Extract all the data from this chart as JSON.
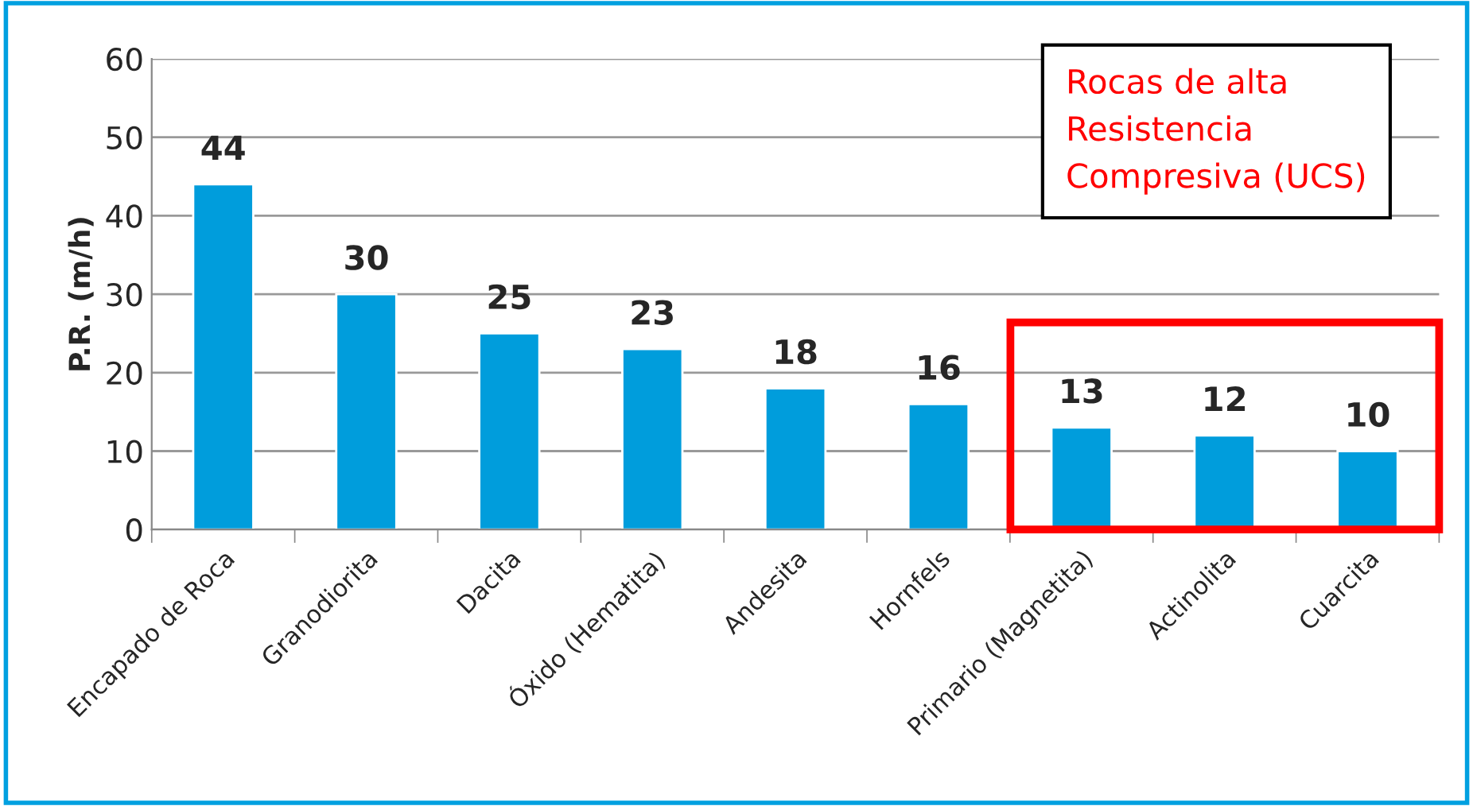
{
  "chart_data": {
    "type": "bar",
    "ylabel": "P.R. (m/h)",
    "categories": [
      "Encapado de Roca",
      "Granodiorita",
      "Dacita",
      "Óxido (Hematita)",
      "Andesita",
      "Hornfels",
      "Primario (Magnetita)",
      "Actinolita",
      "Cuarcita"
    ],
    "values": [
      44,
      30,
      25,
      23,
      18,
      16,
      13,
      12,
      10
    ],
    "color": "#009ddc",
    "ylim": [
      0,
      60
    ],
    "yticks": [
      0,
      10,
      20,
      30,
      40,
      50,
      60
    ],
    "grid": "y",
    "data_labels": true,
    "annotations": [
      "Rocas de alta\nResistencia\nCompresiva (UCS)"
    ]
  }
}
